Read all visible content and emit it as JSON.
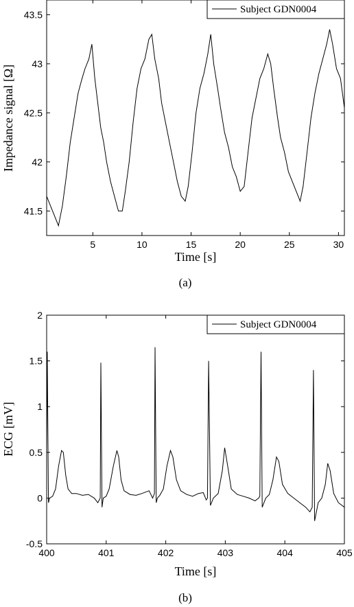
{
  "chart_data": [
    {
      "type": "line",
      "caption": "(a)",
      "xlabel": "Time [s]",
      "ylabel": "Impedance signal [Ω]",
      "xlim": [
        0.3,
        30.6
      ],
      "ylim": [
        41.25,
        43.65
      ],
      "xticks": [
        5,
        10,
        15,
        20,
        25,
        30
      ],
      "yticks": [
        41.5,
        42,
        42.5,
        43,
        43.5
      ],
      "yticklabels": [
        "41.5",
        "42",
        "42.5",
        "43",
        "43.5"
      ],
      "grid": false,
      "legend_position": "top-right",
      "series": [
        {
          "name": "Subject GDN0004",
          "x": [
            0.3,
            0.7,
            1.1,
            1.5,
            1.9,
            2.3,
            2.7,
            3.1,
            3.5,
            3.9,
            4.2,
            4.6,
            4.9,
            5.2,
            5.5,
            5.8,
            6.1,
            6.4,
            6.8,
            7.2,
            7.6,
            8.0,
            8.3,
            8.7,
            9.1,
            9.5,
            9.9,
            10.3,
            10.7,
            11.0,
            11.3,
            11.7,
            12.0,
            12.4,
            12.8,
            13.2,
            13.6,
            14.0,
            14.4,
            14.7,
            15.1,
            15.5,
            15.9,
            16.3,
            16.7,
            17.0,
            17.3,
            17.7,
            18.0,
            18.4,
            18.8,
            19.2,
            19.6,
            20.0,
            20.4,
            20.8,
            21.2,
            21.6,
            22.0,
            22.4,
            22.8,
            23.1,
            23.4,
            23.8,
            24.1,
            24.5,
            24.9,
            25.3,
            25.7,
            26.1,
            26.4,
            26.8,
            27.2,
            27.6,
            28.0,
            28.4,
            28.8,
            29.1,
            29.4,
            29.8,
            30.2,
            30.6
          ],
          "y": [
            41.65,
            41.55,
            41.45,
            41.35,
            41.55,
            41.85,
            42.2,
            42.45,
            42.7,
            42.85,
            42.95,
            43.05,
            43.2,
            42.85,
            42.6,
            42.35,
            42.2,
            42.0,
            41.8,
            41.65,
            41.5,
            41.5,
            41.7,
            42.0,
            42.4,
            42.75,
            42.95,
            43.05,
            43.25,
            43.3,
            43.05,
            42.85,
            42.6,
            42.4,
            42.2,
            42.0,
            41.8,
            41.65,
            41.6,
            41.75,
            42.1,
            42.5,
            42.75,
            42.9,
            43.1,
            43.3,
            43.0,
            42.75,
            42.55,
            42.3,
            42.15,
            41.95,
            41.85,
            41.7,
            41.75,
            42.1,
            42.45,
            42.65,
            42.85,
            42.95,
            43.1,
            43.0,
            42.75,
            42.45,
            42.25,
            42.1,
            41.9,
            41.8,
            41.7,
            41.6,
            41.75,
            42.1,
            42.45,
            42.7,
            42.9,
            43.05,
            43.2,
            43.35,
            43.2,
            42.95,
            42.85,
            42.55
          ]
        }
      ]
    },
    {
      "type": "line",
      "caption": "(b)",
      "xlabel": "Time [s]",
      "ylabel": "ECG [mV]",
      "xlim": [
        400,
        405
      ],
      "ylim": [
        -0.5,
        2
      ],
      "xticks": [
        400,
        401,
        402,
        403,
        404,
        405
      ],
      "yticks": [
        -0.5,
        0,
        0.5,
        1,
        1.5,
        2
      ],
      "yticklabels": [
        "-0.5",
        "0",
        "0.5",
        "1",
        "1.5",
        "2"
      ],
      "grid": false,
      "legend_position": "top-right",
      "series": [
        {
          "name": "Subject GDN0004",
          "x": [
            400.0,
            400.01,
            400.03,
            400.05,
            400.1,
            400.15,
            400.2,
            400.25,
            400.28,
            400.32,
            400.36,
            400.42,
            400.5,
            400.6,
            400.7,
            400.8,
            400.86,
            400.9,
            400.91,
            400.93,
            400.95,
            401.0,
            401.05,
            401.12,
            401.18,
            401.21,
            401.25,
            401.3,
            401.4,
            401.5,
            401.6,
            401.72,
            401.78,
            401.81,
            401.82,
            401.84,
            401.86,
            401.9,
            401.96,
            402.02,
            402.08,
            402.12,
            402.18,
            402.25,
            402.35,
            402.45,
            402.55,
            402.63,
            402.68,
            402.7,
            402.72,
            402.75,
            402.8,
            402.88,
            402.95,
            402.99,
            403.04,
            403.1,
            403.2,
            403.3,
            403.4,
            403.5,
            403.56,
            403.58,
            403.6,
            403.62,
            403.68,
            403.74,
            403.8,
            403.86,
            403.9,
            403.96,
            404.05,
            404.15,
            404.25,
            404.35,
            404.42,
            404.46,
            404.48,
            404.5,
            404.56,
            404.62,
            404.68,
            404.72,
            404.76,
            404.82,
            404.9,
            405.0
          ],
          "y": [
            0.5,
            1.6,
            -0.05,
            0.0,
            0.02,
            0.1,
            0.35,
            0.52,
            0.5,
            0.25,
            0.1,
            0.05,
            0.05,
            0.03,
            0.04,
            0.0,
            -0.05,
            0.0,
            1.48,
            -0.1,
            0.0,
            0.02,
            0.1,
            0.35,
            0.52,
            0.45,
            0.2,
            0.08,
            0.04,
            0.03,
            0.05,
            0.08,
            0.0,
            0.05,
            1.65,
            -0.05,
            0.0,
            0.03,
            0.1,
            0.35,
            0.52,
            0.45,
            0.2,
            0.08,
            0.04,
            0.02,
            0.05,
            0.06,
            -0.02,
            0.0,
            1.5,
            -0.08,
            0.0,
            0.05,
            0.3,
            0.55,
            0.35,
            0.1,
            0.04,
            0.02,
            0.0,
            -0.03,
            0.0,
            0.02,
            1.6,
            -0.1,
            0.0,
            0.04,
            0.2,
            0.45,
            0.4,
            0.15,
            0.05,
            0.0,
            -0.05,
            -0.1,
            -0.15,
            -0.1,
            1.4,
            -0.25,
            -0.05,
            0.0,
            0.15,
            0.38,
            0.3,
            0.05,
            -0.05,
            -0.1
          ]
        }
      ]
    }
  ]
}
